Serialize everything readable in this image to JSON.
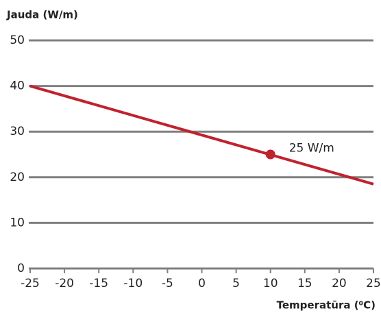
{
  "chart_data": {
    "type": "line",
    "y_label": "Jauda (W/m)",
    "x_label": "Temperatūra (⁰C)",
    "x": [
      -25,
      25
    ],
    "series": [
      {
        "name": null,
        "color": "#c0222e",
        "values": [
          40,
          18.5
        ]
      }
    ],
    "annotations": [
      {
        "x": 10,
        "y": 25,
        "text": "25 W/m"
      }
    ],
    "xlim": [
      -25,
      25
    ],
    "xticks": [
      -25,
      -20,
      -15,
      -10,
      -5,
      0,
      5,
      10,
      15,
      20,
      25
    ],
    "ylim": [
      0,
      50
    ],
    "yticks": [
      0,
      10,
      20,
      30,
      40,
      50
    ],
    "grid": true,
    "grid_color": "#808080"
  }
}
